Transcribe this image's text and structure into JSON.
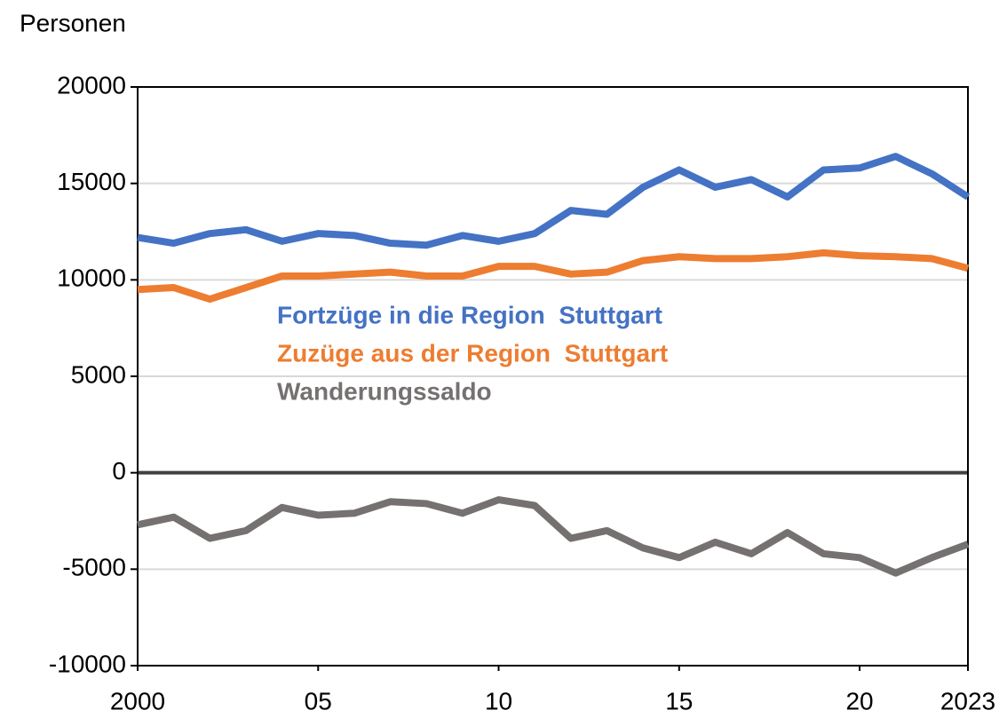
{
  "chart_data": {
    "type": "line",
    "y_axis_label": "Personen",
    "x": [
      2000,
      2001,
      2002,
      2003,
      2004,
      2005,
      2006,
      2007,
      2008,
      2009,
      2010,
      2011,
      2012,
      2013,
      2014,
      2015,
      2016,
      2017,
      2018,
      2019,
      2020,
      2021,
      2022,
      2023
    ],
    "series": [
      {
        "name": "Fortzüge in die Region  Stuttgart",
        "color": "#4472c4",
        "values": [
          12200,
          11900,
          12400,
          12600,
          12000,
          12400,
          12300,
          11900,
          11800,
          12300,
          12000,
          12400,
          13600,
          13400,
          14800,
          15700,
          14800,
          15200,
          14300,
          15700,
          15800,
          16400,
          15500,
          14300
        ]
      },
      {
        "name": "Zuzüge aus der Region  Stuttgart",
        "color": "#ed7d31",
        "values": [
          9500,
          9600,
          9000,
          9600,
          10200,
          10200,
          10300,
          10400,
          10200,
          10200,
          10700,
          10700,
          10300,
          10400,
          11000,
          11200,
          11100,
          11100,
          11200,
          11400,
          11250,
          11200,
          11100,
          10600
        ]
      },
      {
        "name": "Wanderungssaldo",
        "color": "#767171",
        "values": [
          -2700,
          -2300,
          -3400,
          -3000,
          -1800,
          -2200,
          -2100,
          -1500,
          -1600,
          -2100,
          -1400,
          -1700,
          -3400,
          -3000,
          -3900,
          -4400,
          -3600,
          -4200,
          -3100,
          -4200,
          -4400,
          -5200,
          -4400,
          -3700
        ]
      }
    ],
    "xlim": [
      2000,
      2023
    ],
    "xticks": [
      2000,
      {
        "value": 2005,
        "label": "05"
      },
      {
        "value": 2010,
        "label": "10"
      },
      {
        "value": 2015,
        "label": "15"
      },
      {
        "value": 2020,
        "label": "20"
      },
      2023
    ],
    "ylim": [
      -10000,
      20000
    ],
    "yticks": [
      -10000,
      -5000,
      0,
      5000,
      10000,
      15000,
      20000
    ],
    "grid": true
  }
}
